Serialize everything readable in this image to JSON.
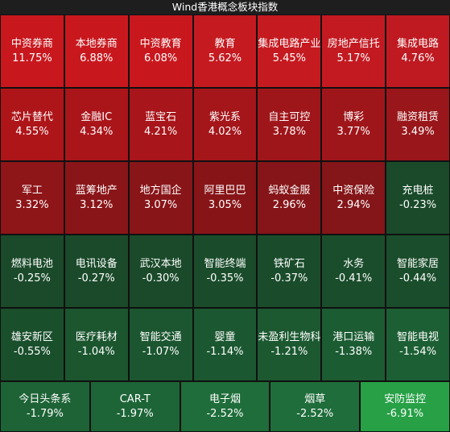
{
  "header": {
    "title": "Wind香港概念板块指数"
  },
  "tiles": [
    {
      "name": "中资券商",
      "change": "11.75%",
      "color": "#c8181e"
    },
    {
      "name": "本地券商",
      "change": "6.88%",
      "color": "#c8181e"
    },
    {
      "name": "中资教育",
      "change": "6.08%",
      "color": "#c8181e"
    },
    {
      "name": "教育",
      "change": "5.62%",
      "color": "#c51a20"
    },
    {
      "name": "集成电路产业",
      "change": "5.45%",
      "color": "#c51a20"
    },
    {
      "name": "房地产信托",
      "change": "5.17%",
      "color": "#c31a21"
    },
    {
      "name": "集成电路",
      "change": "4.76%",
      "color": "#bf1a21"
    },
    {
      "name": "芯片替代",
      "change": "4.55%",
      "color": "#ae1519"
    },
    {
      "name": "金融IC",
      "change": "4.34%",
      "color": "#aa151a"
    },
    {
      "name": "蓝宝石",
      "change": "4.21%",
      "color": "#a8151a"
    },
    {
      "name": "紫光系",
      "change": "4.02%",
      "color": "#a4161a"
    },
    {
      "name": "自主可控",
      "change": "3.78%",
      "color": "#9f161a"
    },
    {
      "name": "博彩",
      "change": "3.77%",
      "color": "#9f161a"
    },
    {
      "name": "融资租赁",
      "change": "3.49%",
      "color": "#99161a"
    },
    {
      "name": "军工",
      "change": "3.32%",
      "color": "#8e1518"
    },
    {
      "name": "蓝筹地产",
      "change": "3.12%",
      "color": "#8a1518"
    },
    {
      "name": "地方国企",
      "change": "3.07%",
      "color": "#881518"
    },
    {
      "name": "阿里巴巴",
      "change": "3.05%",
      "color": "#871518"
    },
    {
      "name": "蚂蚁金服",
      "change": "2.96%",
      "color": "#851518"
    },
    {
      "name": "中资保险",
      "change": "2.94%",
      "color": "#841518"
    },
    {
      "name": "充电桩",
      "change": "-0.23%",
      "color": "#1a4a2a"
    },
    {
      "name": "燃料电池",
      "change": "-0.25%",
      "color": "#1a4a2a"
    },
    {
      "name": "电讯设备",
      "change": "-0.27%",
      "color": "#1a4a2a"
    },
    {
      "name": "武汉本地",
      "change": "-0.30%",
      "color": "#1a4a2a"
    },
    {
      "name": "智能终端",
      "change": "-0.35%",
      "color": "#1a4c2b"
    },
    {
      "name": "铁矿石",
      "change": "-0.37%",
      "color": "#1a4c2b"
    },
    {
      "name": "水务",
      "change": "-0.41%",
      "color": "#1a4d2b"
    },
    {
      "name": "智能家居",
      "change": "-0.44%",
      "color": "#1a4d2b"
    },
    {
      "name": "雄安新区",
      "change": "-0.55%",
      "color": "#1a4f2c"
    },
    {
      "name": "医疗耗材",
      "change": "-1.04%",
      "color": "#1b562f"
    },
    {
      "name": "智能交通",
      "change": "-1.07%",
      "color": "#1b5630"
    },
    {
      "name": "婴童",
      "change": "-1.14%",
      "color": "#1b5831"
    },
    {
      "name": "未盈利生物科",
      "change": "-1.21%",
      "color": "#1c5931"
    },
    {
      "name": "港口运输",
      "change": "-1.38%",
      "color": "#1c5c33"
    },
    {
      "name": "智能电视",
      "change": "-1.54%",
      "color": "#1c5f34"
    },
    {
      "name": "今日头条系",
      "change": "-1.79%",
      "color": "#1d6336"
    },
    {
      "name": "CAR-T",
      "change": "-1.97%",
      "color": "#1d6537"
    },
    {
      "name": "电子烟",
      "change": "-2.52%",
      "color": "#1e6d3a"
    },
    {
      "name": "烟草",
      "change": "-2.52%",
      "color": "#1e6d3a"
    },
    {
      "name": "安防监控",
      "change": "-6.91%",
      "color": "#27a046"
    }
  ]
}
